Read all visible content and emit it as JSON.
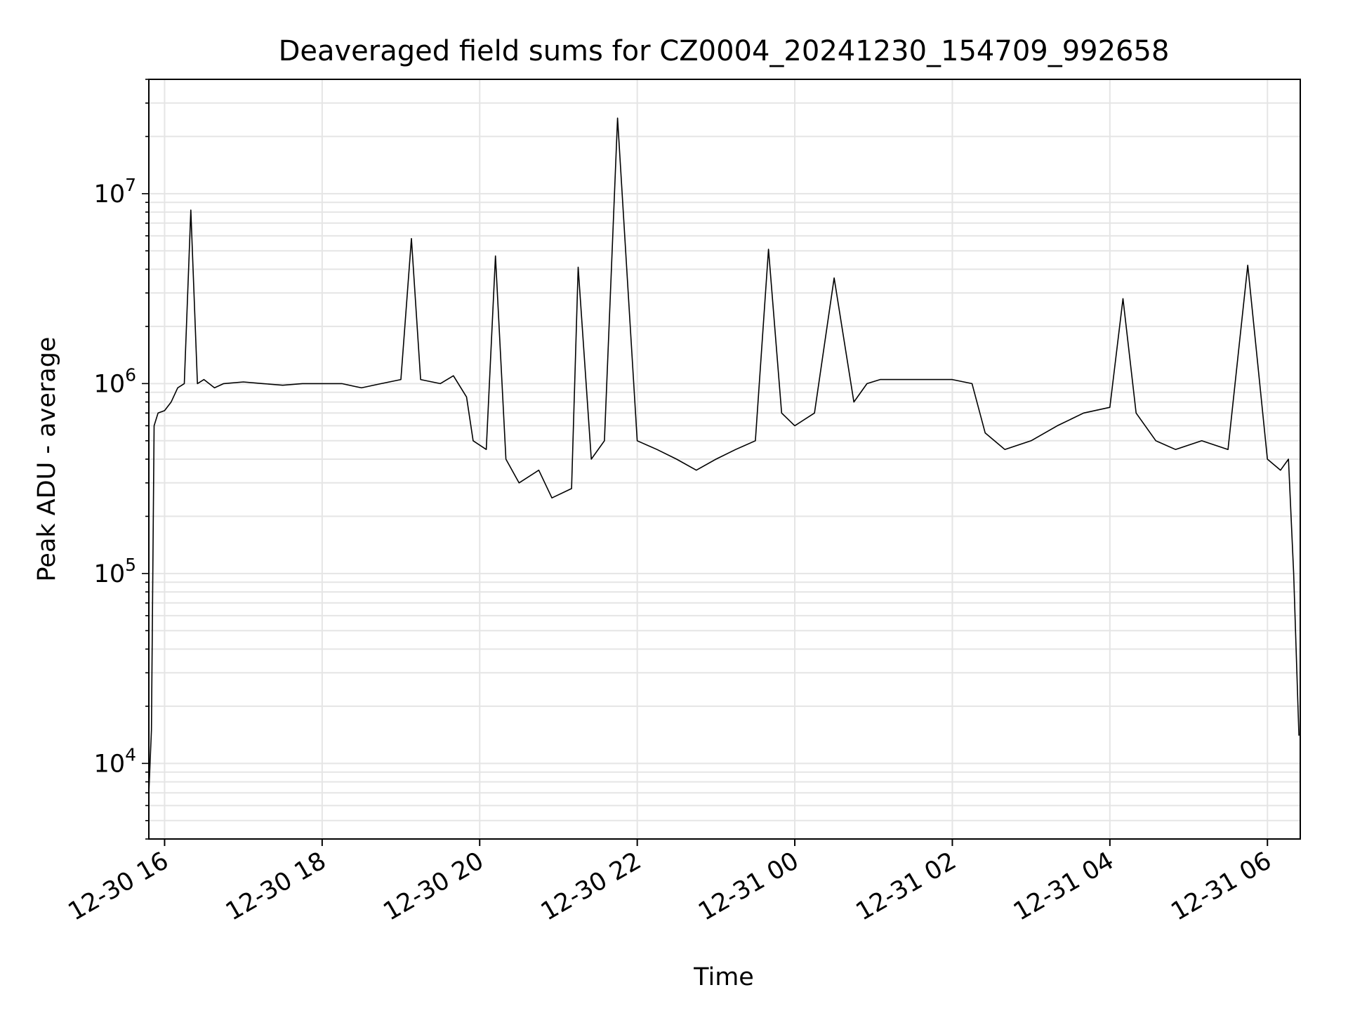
{
  "chart_data": {
    "type": "line",
    "title": "Deaveraged field sums for CZ0004_20241230_154709_992658",
    "xlabel": "Time",
    "ylabel": "Peak ADU - average",
    "yscale": "log",
    "ylim": [
      4000,
      40000000
    ],
    "xlim": [
      "2024-12-30 15:48",
      "2024-12-31 06:25"
    ],
    "x_ticks": [
      {
        "label": "12-30 16",
        "value": "2024-12-30 16:00"
      },
      {
        "label": "12-30 18",
        "value": "2024-12-30 18:00"
      },
      {
        "label": "12-30 20",
        "value": "2024-12-30 20:00"
      },
      {
        "label": "12-30 22",
        "value": "2024-12-30 22:00"
      },
      {
        "label": "12-31 00",
        "value": "2024-12-31 00:00"
      },
      {
        "label": "12-31 02",
        "value": "2024-12-31 02:00"
      },
      {
        "label": "12-31 04",
        "value": "2024-12-31 04:00"
      },
      {
        "label": "12-31 06",
        "value": "2024-12-31 06:00"
      }
    ],
    "y_ticks": [
      {
        "base": "10",
        "exp": "4",
        "value": 10000
      },
      {
        "base": "10",
        "exp": "5",
        "value": 100000
      },
      {
        "base": "10",
        "exp": "6",
        "value": 1000000
      },
      {
        "base": "10",
        "exp": "7",
        "value": 10000000
      }
    ],
    "grid": true,
    "line_color": "#000000",
    "grid_color": "#e5e5e5",
    "series": [
      {
        "x": [
          "2024-12-30 15:48",
          "2024-12-30 15:50",
          "2024-12-30 15:52",
          "2024-12-30 15:55",
          "2024-12-30 16:00",
          "2024-12-30 16:05",
          "2024-12-30 16:10",
          "2024-12-30 16:15",
          "2024-12-30 16:20",
          "2024-12-30 16:25",
          "2024-12-30 16:30",
          "2024-12-30 16:38",
          "2024-12-30 16:45",
          "2024-12-30 17:00",
          "2024-12-30 17:15",
          "2024-12-30 17:30",
          "2024-12-30 17:45",
          "2024-12-30 18:00",
          "2024-12-30 18:15",
          "2024-12-30 18:30",
          "2024-12-30 18:45",
          "2024-12-30 19:00",
          "2024-12-30 19:08",
          "2024-12-30 19:15",
          "2024-12-30 19:30",
          "2024-12-30 19:40",
          "2024-12-30 19:50",
          "2024-12-30 19:55",
          "2024-12-30 20:05",
          "2024-12-30 20:12",
          "2024-12-30 20:20",
          "2024-12-30 20:30",
          "2024-12-30 20:45",
          "2024-12-30 20:55",
          "2024-12-30 21:10",
          "2024-12-30 21:15",
          "2024-12-30 21:25",
          "2024-12-30 21:35",
          "2024-12-30 21:45",
          "2024-12-30 22:00",
          "2024-12-30 22:15",
          "2024-12-30 22:30",
          "2024-12-30 22:45",
          "2024-12-30 23:00",
          "2024-12-30 23:15",
          "2024-12-30 23:30",
          "2024-12-30 23:40",
          "2024-12-30 23:50",
          "2024-12-31 00:00",
          "2024-12-31 00:15",
          "2024-12-31 00:30",
          "2024-12-31 00:45",
          "2024-12-31 00:55",
          "2024-12-31 01:05",
          "2024-12-31 01:30",
          "2024-12-31 02:00",
          "2024-12-31 02:15",
          "2024-12-31 02:25",
          "2024-12-31 02:40",
          "2024-12-31 03:00",
          "2024-12-31 03:20",
          "2024-12-31 03:40",
          "2024-12-31 04:00",
          "2024-12-31 04:10",
          "2024-12-31 04:20",
          "2024-12-31 04:35",
          "2024-12-31 04:50",
          "2024-12-31 05:10",
          "2024-12-31 05:30",
          "2024-12-31 05:45",
          "2024-12-31 06:00",
          "2024-12-31 06:10",
          "2024-12-31 06:16",
          "2024-12-31 06:20",
          "2024-12-31 06:24"
        ],
        "y": [
          7000,
          15000,
          600000,
          700000,
          720000,
          800000,
          950000,
          1000000,
          8200000,
          1000000,
          1050000,
          950000,
          1000000,
          1020000,
          1000000,
          980000,
          1000000,
          1000000,
          1000000,
          950000,
          1000000,
          1050000,
          5800000,
          1050000,
          1000000,
          1100000,
          850000,
          500000,
          450000,
          4700000,
          400000,
          300000,
          350000,
          250000,
          280000,
          4100000,
          400000,
          500000,
          25000000,
          500000,
          450000,
          400000,
          350000,
          400000,
          450000,
          500000,
          5100000,
          700000,
          600000,
          700000,
          3600000,
          800000,
          1000000,
          1050000,
          1050000,
          1050000,
          1000000,
          550000,
          450000,
          500000,
          600000,
          700000,
          750000,
          2800000,
          700000,
          500000,
          450000,
          500000,
          450000,
          4200000,
          400000,
          350000,
          400000,
          100000,
          14000
        ]
      }
    ]
  }
}
